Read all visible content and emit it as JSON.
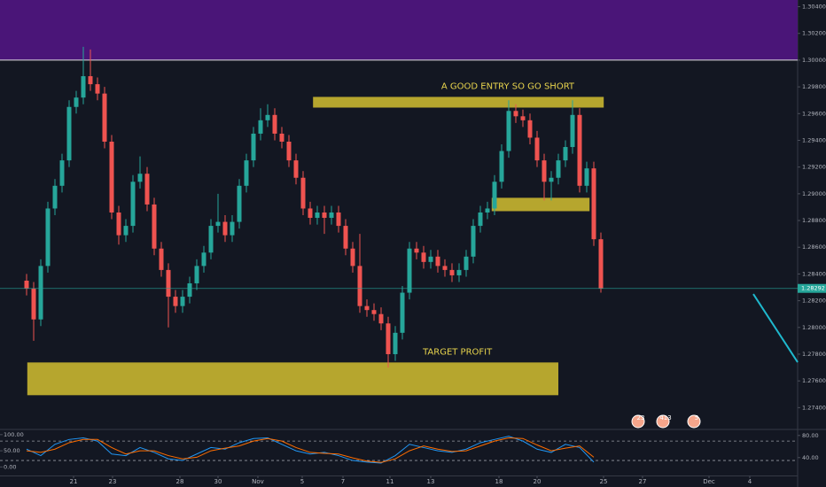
{
  "chart_data": [
    {
      "type": "candlestick",
      "xlim": [
        -3.75,
        108.75
      ],
      "ylim": [
        1.2725,
        1.3045
      ],
      "xticks": [
        {
          "value": 6.625,
          "label": "21"
        },
        {
          "value": 12.125,
          "label": "23"
        },
        {
          "value": 21.625,
          "label": "28"
        },
        {
          "value": 27,
          "label": "30"
        },
        {
          "value": 32.625,
          "label": "Nov"
        },
        {
          "value": 38.875,
          "label": "5"
        },
        {
          "value": 44.625,
          "label": "7"
        },
        {
          "value": 51.25,
          "label": "11"
        },
        {
          "value": 57,
          "label": "13"
        },
        {
          "value": 66.625,
          "label": "18"
        },
        {
          "value": 72,
          "label": "20"
        },
        {
          "value": 81.375,
          "label": "25"
        },
        {
          "value": 86.875,
          "label": "27"
        },
        {
          "value": 96.25,
          "label": "Dec"
        },
        {
          "value": 102,
          "label": "4"
        }
      ],
      "yticks": [
        {
          "value": 1.304,
          "label": "1.30400"
        },
        {
          "value": 1.302,
          "label": "1.30200"
        },
        {
          "value": 1.3,
          "label": "1.30000"
        },
        {
          "value": 1.298,
          "label": "1.29800"
        },
        {
          "value": 1.296,
          "label": "1.29600"
        },
        {
          "value": 1.294,
          "label": "1.29400"
        },
        {
          "value": 1.292,
          "label": "1.29200"
        },
        {
          "value": 1.29,
          "label": "1.29000"
        },
        {
          "value": 1.288,
          "label": "1.28800"
        },
        {
          "value": 1.286,
          "label": "1.28600"
        },
        {
          "value": 1.284,
          "label": "1.28400"
        },
        {
          "value": 1.282,
          "label": "1.28200"
        },
        {
          "value": 1.28,
          "label": "1.28000"
        },
        {
          "value": 1.278,
          "label": "1.27800"
        },
        {
          "value": 1.276,
          "label": "1.27600"
        },
        {
          "value": 1.274,
          "label": "1.27400"
        }
      ],
      "up_color": "#26a69a",
      "down_color": "#ef5350",
      "open": [
        1.2835,
        1.2829,
        1.2806,
        1.2846,
        1.2889,
        1.2906,
        1.2925,
        1.2965,
        1.2972,
        1.2988,
        1.2982,
        1.2975,
        1.2939,
        1.2886,
        1.2869,
        1.2876,
        1.2909,
        1.2915,
        1.2892,
        1.2859,
        1.2843,
        1.2823,
        1.2816,
        1.2823,
        1.2833,
        1.2846,
        1.2856,
        1.2876,
        1.2879,
        1.2869,
        1.2879,
        1.2906,
        1.2925,
        1.2945,
        1.2955,
        1.2959,
        1.2945,
        1.2939,
        1.2925,
        1.2912,
        1.2889,
        1.2882,
        1.2886,
        1.2882,
        1.2886,
        1.2876,
        1.2859,
        1.2846,
        1.2816,
        1.2813,
        1.281,
        1.2803,
        1.278,
        1.2796,
        1.2826,
        1.2859,
        1.2856,
        1.2849,
        1.2853,
        1.2846,
        1.2843,
        1.2839,
        1.2843,
        1.2853,
        1.2876,
        1.2886,
        1.2889,
        1.2909,
        1.2932,
        1.2962,
        1.2958,
        1.2955,
        1.2942,
        1.2925,
        1.2909,
        1.2912,
        1.2925,
        1.2935,
        1.2959,
        1.2906,
        1.2919,
        1.2866
      ],
      "high": [
        1.284,
        1.2834,
        1.2851,
        1.2894,
        1.2911,
        1.293,
        1.297,
        1.2977,
        1.301,
        1.3008,
        1.2987,
        1.298,
        1.2944,
        1.2891,
        1.2881,
        1.2914,
        1.2928,
        1.292,
        1.2897,
        1.2864,
        1.2848,
        1.2828,
        1.2828,
        1.2838,
        1.2851,
        1.2861,
        1.2881,
        1.29,
        1.2884,
        1.2884,
        1.2911,
        1.293,
        1.295,
        1.2964,
        1.2967,
        1.2964,
        1.295,
        1.2944,
        1.293,
        1.2917,
        1.2894,
        1.2891,
        1.2891,
        1.2891,
        1.2891,
        1.2881,
        1.2864,
        1.287,
        1.2821,
        1.2818,
        1.2815,
        1.2808,
        1.2801,
        1.2831,
        1.2864,
        1.2864,
        1.2861,
        1.2858,
        1.2858,
        1.2851,
        1.2848,
        1.2848,
        1.2858,
        1.2881,
        1.2891,
        1.2894,
        1.2914,
        1.2937,
        1.297,
        1.2967,
        1.2963,
        1.296,
        1.2947,
        1.293,
        1.2917,
        1.293,
        1.294,
        1.297,
        1.2964,
        1.2924,
        1.2924,
        1.2871
      ],
      "low": [
        1.2824,
        1.279,
        1.2801,
        1.2841,
        1.2884,
        1.2901,
        1.292,
        1.296,
        1.2967,
        1.2977,
        1.297,
        1.2934,
        1.2881,
        1.2862,
        1.2864,
        1.2871,
        1.2904,
        1.2887,
        1.2854,
        1.2838,
        1.28,
        1.2811,
        1.2811,
        1.2818,
        1.2828,
        1.2841,
        1.2851,
        1.2871,
        1.2864,
        1.2864,
        1.2874,
        1.2901,
        1.292,
        1.294,
        1.295,
        1.294,
        1.2934,
        1.292,
        1.2907,
        1.2884,
        1.2877,
        1.2877,
        1.287,
        1.2877,
        1.2871,
        1.2854,
        1.2841,
        1.2811,
        1.2808,
        1.2805,
        1.2798,
        1.277,
        1.2775,
        1.2791,
        1.2821,
        1.2851,
        1.2844,
        1.2844,
        1.2841,
        1.2838,
        1.2834,
        1.2834,
        1.2838,
        1.2848,
        1.2871,
        1.2881,
        1.2884,
        1.2904,
        1.2927,
        1.2953,
        1.295,
        1.2937,
        1.292,
        1.2895,
        1.2895,
        1.2907,
        1.292,
        1.293,
        1.2901,
        1.2901,
        1.2861,
        1.2826
      ],
      "close": [
        1.2829,
        1.2806,
        1.2846,
        1.2889,
        1.2906,
        1.2925,
        1.2965,
        1.2972,
        1.2988,
        1.2982,
        1.2975,
        1.2939,
        1.2886,
        1.2869,
        1.2876,
        1.2909,
        1.2915,
        1.2892,
        1.2859,
        1.2843,
        1.2823,
        1.2816,
        1.2823,
        1.2833,
        1.2846,
        1.2856,
        1.2876,
        1.2879,
        1.2869,
        1.2879,
        1.2906,
        1.2925,
        1.2945,
        1.2955,
        1.2959,
        1.2945,
        1.2939,
        1.2925,
        1.2912,
        1.2889,
        1.2882,
        1.2886,
        1.2882,
        1.2886,
        1.2876,
        1.2859,
        1.2846,
        1.2816,
        1.2813,
        1.281,
        1.2803,
        1.278,
        1.2796,
        1.2826,
        1.2859,
        1.2856,
        1.2849,
        1.2853,
        1.2846,
        1.2843,
        1.2839,
        1.2843,
        1.2853,
        1.2876,
        1.2886,
        1.2889,
        1.2909,
        1.2932,
        1.2962,
        1.2958,
        1.2955,
        1.2942,
        1.2925,
        1.2909,
        1.2912,
        1.2925,
        1.2935,
        1.2959,
        1.2906,
        1.2919,
        1.2866,
        1.2829
      ],
      "zones": [
        {
          "x": [
            -3.75,
            108.75
          ],
          "y": [
            1.3,
            1.3045
          ],
          "color": "#4a1578"
        },
        {
          "x": [
            40.4,
            81.4
          ],
          "y": [
            1.29645,
            1.29725
          ],
          "color": "#d4c030",
          "label": "A GOOD ENTRY SO GO SHORT"
        },
        {
          "x": [
            65.6,
            79.4
          ],
          "y": [
            1.2887,
            1.2897
          ],
          "color": "#d4c030"
        },
        {
          "x": [
            0.1,
            75
          ],
          "y": [
            1.27493,
            1.27738
          ],
          "color": "#d4c030",
          "label": "TARGET PROFIT"
        }
      ],
      "last_price": {
        "value": 1.28292,
        "label": "1.28292",
        "color": "#26a69a"
      },
      "trend_line": {
        "x": [
          102.5,
          108.75
        ],
        "y": [
          1.2825,
          1.2774
        ],
        "color": "#1fb8cd"
      },
      "badges": [
        "23",
        "413",
        "5"
      ]
    },
    {
      "type": "line",
      "xlim": [
        -3.75,
        108.75
      ],
      "ylim": [
        -23.7,
        110.5
      ],
      "yticks": [
        {
          "value": 100,
          "label": "100.00"
        },
        {
          "value": 50,
          "label": "50.00"
        },
        {
          "value": 0,
          "label": "0.00"
        }
      ],
      "y2lim": [
        9.2,
        87.7
      ],
      "y2ticks": [
        {
          "value": 80,
          "label": "80.00"
        },
        {
          "value": 40,
          "label": "40.00"
        }
      ],
      "levels": [
        80,
        20
      ],
      "x": [
        0,
        2,
        4,
        6,
        8,
        10,
        12,
        14,
        16,
        18,
        20,
        22,
        24,
        26,
        28,
        30,
        32,
        34,
        36,
        38,
        40,
        42,
        44,
        46,
        48,
        50,
        52,
        54,
        56,
        58,
        60,
        62,
        64,
        66,
        68,
        70,
        72,
        74,
        76,
        78,
        80
      ],
      "series": [
        {
          "color": "#2196f3",
          "values": [
            55,
            35,
            70,
            85,
            90,
            80,
            40,
            35,
            60,
            45,
            25,
            20,
            40,
            60,
            55,
            75,
            88,
            90,
            70,
            50,
            40,
            45,
            35,
            20,
            15,
            12,
            35,
            70,
            60,
            50,
            45,
            55,
            75,
            85,
            95,
            80,
            55,
            45,
            70,
            60,
            15
          ]
        },
        {
          "color": "#ff6d00",
          "values": [
            50,
            45,
            55,
            75,
            85,
            85,
            60,
            40,
            50,
            50,
            35,
            25,
            30,
            50,
            58,
            65,
            80,
            88,
            80,
            60,
            45,
            42,
            40,
            28,
            18,
            14,
            25,
            50,
            65,
            55,
            48,
            50,
            65,
            80,
            90,
            88,
            68,
            50,
            58,
            65,
            30
          ]
        }
      ]
    }
  ]
}
